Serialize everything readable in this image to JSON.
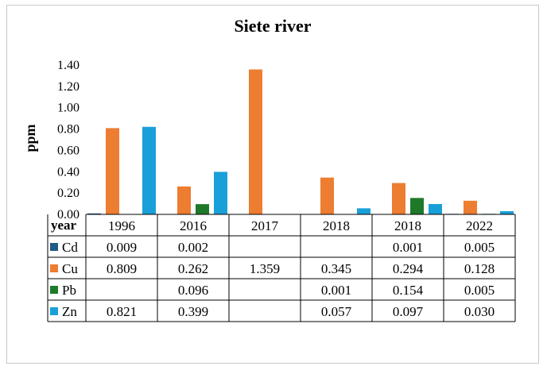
{
  "chart_data": {
    "type": "bar",
    "title": "Siete river",
    "ylabel": "ppm",
    "ylim": [
      0,
      1.4
    ],
    "yticks": [
      "0.00",
      "0.20",
      "0.40",
      "0.60",
      "0.80",
      "1.00",
      "1.20",
      "1.40"
    ],
    "table_header": "year",
    "categories": [
      "1996",
      "2016",
      "2017",
      "2018",
      "2018",
      "2022"
    ],
    "series": [
      {
        "name": "Cd",
        "color": "#1f5c85",
        "values": [
          0.009,
          0.002,
          null,
          null,
          0.001,
          0.005
        ],
        "labels": [
          "0.009",
          "0.002",
          "",
          "",
          "0.001",
          "0.005"
        ]
      },
      {
        "name": "Cu",
        "color": "#ed7d31",
        "values": [
          0.809,
          0.262,
          1.359,
          0.345,
          0.294,
          0.128
        ],
        "labels": [
          "0.809",
          "0.262",
          "1.359",
          "0.345",
          "0.294",
          "0.128"
        ]
      },
      {
        "name": "Pb",
        "color": "#1e7a2a",
        "values": [
          null,
          0.096,
          null,
          0.001,
          0.154,
          0.005
        ],
        "labels": [
          "",
          "0.096",
          "",
          "0.001",
          "0.154",
          "0.005"
        ]
      },
      {
        "name": "Zn",
        "color": "#1aa0d8",
        "values": [
          0.821,
          0.399,
          null,
          0.057,
          0.097,
          0.03
        ],
        "labels": [
          "0.821",
          "0.399",
          "",
          "0.057",
          "0.097",
          "0.030"
        ]
      }
    ]
  }
}
